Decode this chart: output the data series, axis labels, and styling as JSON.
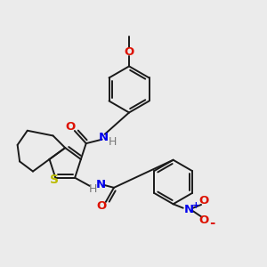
{
  "background_color": "#ebebeb",
  "bond_color": "#1a1a1a",
  "oxygen_color": "#dd1100",
  "nitrogen_color": "#0000ee",
  "sulfur_color": "#bbbb00",
  "h_color": "#777777",
  "figsize": [
    3.0,
    3.0
  ],
  "dpi": 100,
  "xlim": [
    0,
    12
  ],
  "ylim": [
    0,
    12
  ]
}
